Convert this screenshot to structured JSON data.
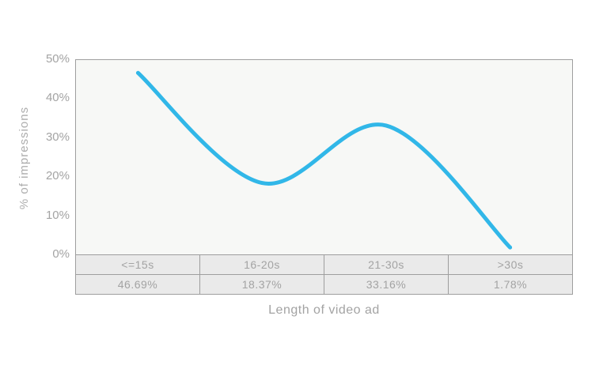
{
  "chart_data": {
    "type": "line",
    "categories": [
      "<=15s",
      "16-20s",
      "21-30s",
      ">30s"
    ],
    "values": [
      46.69,
      18.37,
      33.16,
      1.78
    ],
    "value_labels": [
      "46.69%",
      "18.37%",
      "33.16%",
      "1.78%"
    ],
    "title": "",
    "xlabel": "Length of video ad",
    "ylabel": "% of impressions",
    "ylim": [
      0,
      50
    ],
    "yticks_top_to_bottom": [
      "50%",
      "40%",
      "30%",
      "20%",
      "10%",
      "0%"
    ],
    "grid": false,
    "legend": false,
    "line_smooth": true,
    "colors": {
      "line": "#31b7e8",
      "plot_background": "#f7f8f6",
      "table_cell_background": "#eaeaea",
      "border": "#9e9e9e",
      "label_text": "#a3a3a3",
      "axis_title_text": "#adadad"
    }
  }
}
